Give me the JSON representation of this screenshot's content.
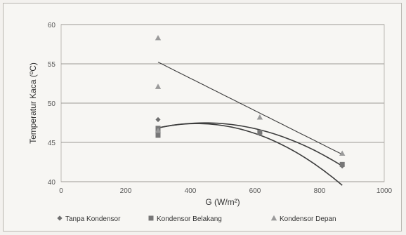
{
  "chart_data": {
    "type": "scatter",
    "xlabel": "G (W/m²)",
    "ylabel": "Temperatur Kaca (ºC)",
    "xlim": [
      0,
      1000
    ],
    "ylim": [
      40,
      60
    ],
    "xticks": [
      0,
      200,
      400,
      600,
      800,
      1000
    ],
    "yticks": [
      40,
      45,
      50,
      55,
      60
    ],
    "grid": "horizontal",
    "legend_position": "bottom",
    "series": [
      {
        "name": "Tanpa Kondensor",
        "marker": "diamond",
        "color": "#6f6f6f",
        "points": [
          [
            300,
            47.9
          ],
          [
            300,
            46.6
          ],
          [
            615,
            46.1
          ],
          [
            870,
            42.0
          ]
        ],
        "trendline": {
          "type": "polynomial",
          "from": 300,
          "to": 870,
          "coef": [
            41.467,
            0.02705,
            -3.04e-05
          ]
        }
      },
      {
        "name": "Kondensor Belakang",
        "marker": "square",
        "color": "#777777",
        "points": [
          [
            300,
            46.8
          ],
          [
            300,
            46.2
          ],
          [
            300,
            45.9
          ],
          [
            615,
            46.3
          ],
          [
            870,
            42.2
          ]
        ],
        "trendline": {
          "type": "polynomial",
          "from": 300,
          "to": 870,
          "coef": [
            40.55,
            0.0326,
            -3.88e-05
          ]
        }
      },
      {
        "name": "Kondensor Depan",
        "marker": "triangle",
        "color": "#9a9a9a",
        "points": [
          [
            300,
            58.3
          ],
          [
            300,
            52.1
          ],
          [
            300,
            46.5
          ],
          [
            615,
            48.2
          ],
          [
            870,
            43.6
          ]
        ],
        "trendline": {
          "type": "linear",
          "from": 300,
          "to": 870,
          "coef": [
            61.4,
            -0.0206
          ]
        }
      }
    ]
  }
}
